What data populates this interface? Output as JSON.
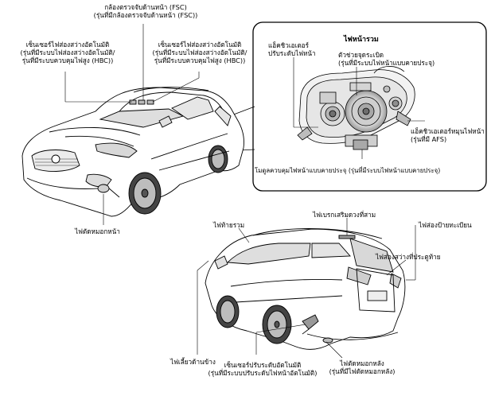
{
  "labels": {
    "fsc_camera": {
      "line1": "กล้องตรวจจับด้านหน้า (FSC)",
      "line2": "(รุ่นที่มีกล้องตรวจจับด้านหน้า (FSC))"
    },
    "auto_light_sensor_left": {
      "line1": "เซ็นเซอร์ไฟส่องสว่างอัตโนมัติ",
      "line2": "(รุ่นที่มีระบบไฟส่องสว่างอัตโนมัติ/",
      "line3": "รุ่นที่มีระบบควบคุมไฟสูง (HBC))"
    },
    "auto_light_sensor_right": {
      "line1": "เซ็นเซอร์ไฟส่องสว่างอัตโนมัติ",
      "line2": "(รุ่นที่มีระบบไฟส่องสว่างอัตโนมัติ/",
      "line3": "รุ่นที่มีระบบควบคุมไฟสูง (HBC))"
    },
    "front_fog_light": "ไฟตัดหมอกหน้า",
    "rear_combination_light": "ไฟท้ายรวม",
    "high_mount_brake_light": "ไฟเบรกเสริมดวงที่สาม",
    "license_plate_light": "ไฟส่องป้ายทะเบียน",
    "liftgate_light": "ไฟส่องสว่างที่ประตูท้าย",
    "side_turn_light": "ไฟเลี้ยวด้านข้าง",
    "auto_leveling_sensor": {
      "line1": "เซ็นเซอร์ปรับระดับอัตโนมัติ",
      "line2": "(รุ่นที่มีระบบปรับระดับไฟหน้าอัตโนมัติ)"
    },
    "rear_fog_light": {
      "line1": "ไฟตัดหมอกหลัง",
      "line2": "(รุ่นที่มีไฟตัดหมอกหลัง)"
    }
  },
  "inset": {
    "title": "ไฟหน้ารวม",
    "leveling_actuator": {
      "line1": "แอ็คชิวเอเตอร์",
      "line2": "ปรับระดับไฟหน้า"
    },
    "igniter": {
      "line1": "ตัวช่วยจุดระเบิด",
      "line2": "(รุ่นที่มีระบบไฟหน้าแบบคายประจุ)"
    },
    "swivel_actuator": {
      "line1": "แอ็คชิวเอเตอร์หมุนไฟหน้า",
      "line2": "(รุ่นที่มี AFS)"
    },
    "discharge_control_module": "โมดูลควบคุมไฟหน้าแบบคายประจุ (รุ่นที่มีระบบไฟหน้าแบบคายประจุ)"
  },
  "colors": {
    "line": "#000000",
    "background": "#ffffff"
  }
}
